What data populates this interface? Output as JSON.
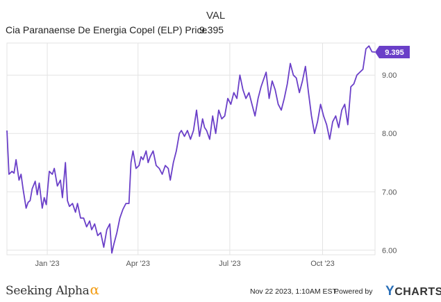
{
  "legend": {
    "header": "VAL",
    "series_name": "Cia Paranaense De Energia Copel (ELP) Price",
    "series_value": "9.395"
  },
  "footer": {
    "brand": "Seeking Alpha",
    "brand_mark": "α",
    "date": "Nov 22 2023, 1:10AM EST.",
    "powered_by": "Powered by",
    "provider_y": "Y",
    "provider_rest": "CHARTS"
  },
  "colors": {
    "line": "#6a3fc8",
    "grid": "#e3e3e3",
    "badge": "#6a3fc8"
  },
  "chart_data": {
    "type": "line",
    "title": "",
    "xlabel": "",
    "ylabel": "",
    "ylim": [
      5.92,
      9.55
    ],
    "xlim": [
      "2022-11-22",
      "2023-11-22"
    ],
    "grid": true,
    "y_axis_position": "right",
    "x_ticks": [
      {
        "date": "2023-01-01",
        "label": "Jan '23"
      },
      {
        "date": "2023-04-01",
        "label": "Apr '23"
      },
      {
        "date": "2023-07-01",
        "label": "Jul '23"
      },
      {
        "date": "2023-10-01",
        "label": "Oct '23"
      }
    ],
    "y_ticks": [
      {
        "value": 6.0,
        "label": "6.00"
      },
      {
        "value": 7.0,
        "label": "7.00"
      },
      {
        "value": 8.0,
        "label": "8.00"
      },
      {
        "value": 9.0,
        "label": "9.00"
      }
    ],
    "last_value_label": "9.395",
    "series": [
      {
        "name": "Cia Paranaense De Energia Copel (ELP) Price",
        "x": [
          "2022-11-22",
          "2022-11-24",
          "2022-11-27",
          "2022-11-29",
          "2022-12-01",
          "2022-12-04",
          "2022-12-06",
          "2022-12-08",
          "2022-12-11",
          "2022-12-13",
          "2022-12-15",
          "2022-12-17",
          "2022-12-20",
          "2022-12-22",
          "2022-12-24",
          "2022-12-27",
          "2022-12-29",
          "2022-12-31",
          "2023-01-03",
          "2023-01-06",
          "2023-01-08",
          "2023-01-11",
          "2023-01-14",
          "2023-01-16",
          "2023-01-19",
          "2023-01-21",
          "2023-01-23",
          "2023-01-26",
          "2023-01-29",
          "2023-01-31",
          "2023-02-03",
          "2023-02-06",
          "2023-02-09",
          "2023-02-12",
          "2023-02-14",
          "2023-02-17",
          "2023-02-20",
          "2023-02-23",
          "2023-02-26",
          "2023-03-01",
          "2023-03-04",
          "2023-03-06",
          "2023-03-08",
          "2023-03-11",
          "2023-03-14",
          "2023-03-17",
          "2023-03-20",
          "2023-03-23",
          "2023-03-25",
          "2023-03-27",
          "2023-03-30",
          "2023-04-02",
          "2023-04-04",
          "2023-04-06",
          "2023-04-09",
          "2023-04-11",
          "2023-04-13",
          "2023-04-16",
          "2023-04-19",
          "2023-04-22",
          "2023-04-25",
          "2023-04-28",
          "2023-05-01",
          "2023-05-03",
          "2023-05-06",
          "2023-05-09",
          "2023-05-12",
          "2023-05-14",
          "2023-05-17",
          "2023-05-20",
          "2023-05-23",
          "2023-05-26",
          "2023-05-29",
          "2023-06-01",
          "2023-06-04",
          "2023-06-06",
          "2023-06-08",
          "2023-06-11",
          "2023-06-14",
          "2023-06-17",
          "2023-06-20",
          "2023-06-23",
          "2023-06-26",
          "2023-06-29",
          "2023-07-02",
          "2023-07-05",
          "2023-07-08",
          "2023-07-11",
          "2023-07-14",
          "2023-07-17",
          "2023-07-20",
          "2023-07-23",
          "2023-07-26",
          "2023-07-29",
          "2023-08-01",
          "2023-08-03",
          "2023-08-06",
          "2023-08-09",
          "2023-08-12",
          "2023-08-15",
          "2023-08-18",
          "2023-08-21",
          "2023-08-24",
          "2023-08-27",
          "2023-08-30",
          "2023-09-02",
          "2023-09-05",
          "2023-09-08",
          "2023-09-11",
          "2023-09-14",
          "2023-09-17",
          "2023-09-20",
          "2023-09-23",
          "2023-09-26",
          "2023-09-29",
          "2023-10-02",
          "2023-10-05",
          "2023-10-08",
          "2023-10-11",
          "2023-10-14",
          "2023-10-17",
          "2023-10-20",
          "2023-10-23",
          "2023-10-26",
          "2023-10-29",
          "2023-11-01",
          "2023-11-04",
          "2023-11-07",
          "2023-11-10",
          "2023-11-13",
          "2023-11-16",
          "2023-11-19",
          "2023-11-22"
        ],
        "values": [
          8.05,
          7.3,
          7.35,
          7.32,
          7.55,
          7.2,
          7.3,
          7.05,
          6.72,
          6.82,
          6.85,
          7.05,
          7.18,
          6.95,
          7.15,
          6.72,
          6.9,
          6.78,
          7.35,
          7.3,
          7.4,
          7.1,
          7.2,
          6.9,
          7.5,
          6.85,
          6.75,
          6.8,
          6.65,
          6.8,
          6.55,
          6.55,
          6.4,
          6.5,
          6.35,
          6.45,
          6.25,
          6.3,
          6.05,
          6.35,
          6.45,
          5.95,
          6.1,
          6.3,
          6.55,
          6.7,
          6.8,
          6.8,
          7.5,
          7.7,
          7.4,
          7.45,
          7.6,
          7.55,
          7.7,
          7.5,
          7.6,
          7.7,
          7.45,
          7.4,
          7.3,
          7.45,
          7.4,
          7.2,
          7.5,
          7.7,
          8.0,
          8.05,
          7.95,
          8.05,
          7.9,
          8.05,
          8.4,
          7.95,
          8.25,
          8.1,
          8.05,
          7.9,
          8.3,
          8.0,
          8.4,
          8.25,
          8.3,
          8.6,
          8.5,
          8.7,
          8.6,
          9.0,
          8.75,
          8.6,
          8.7,
          8.5,
          8.3,
          8.6,
          8.8,
          8.9,
          9.05,
          8.6,
          8.9,
          8.75,
          8.5,
          8.4,
          8.6,
          8.85,
          9.2,
          9.0,
          8.95,
          8.7,
          8.9,
          9.15,
          8.7,
          8.3,
          8.0,
          8.2,
          8.5,
          8.3,
          8.15,
          7.9,
          8.2,
          8.3,
          8.1,
          8.4,
          8.5,
          8.15,
          8.8,
          8.85,
          9.0,
          9.05,
          9.1,
          9.45,
          9.5,
          9.4,
          9.395
        ]
      }
    ]
  }
}
